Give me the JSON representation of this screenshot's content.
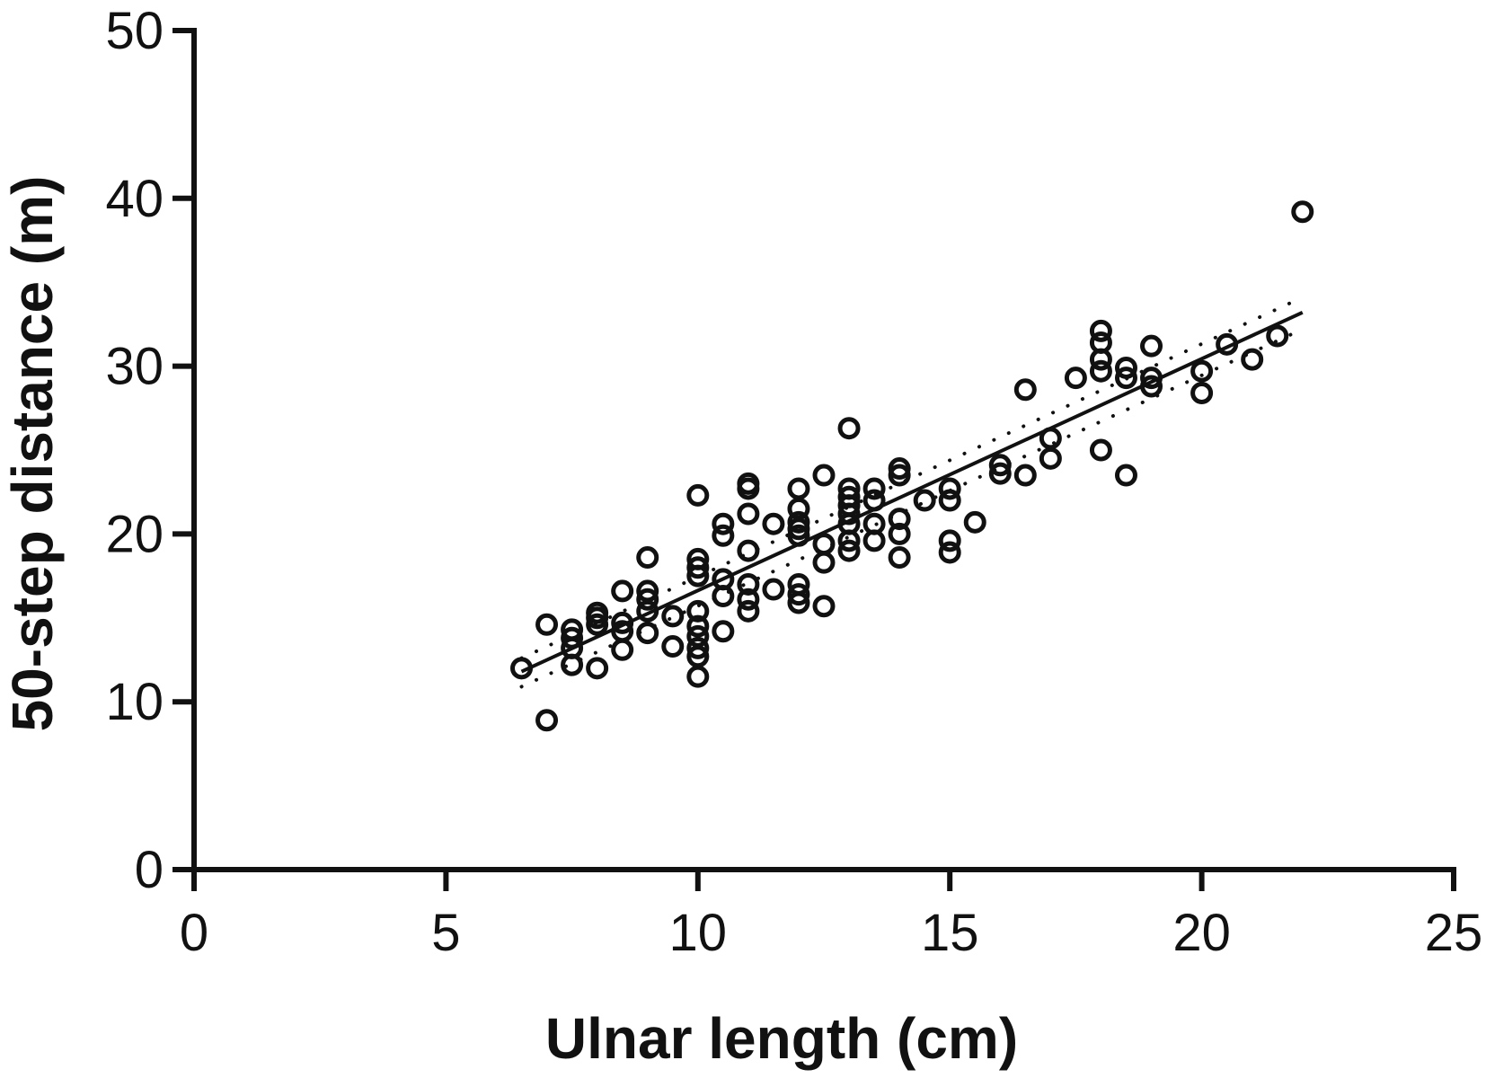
{
  "chart_data": {
    "type": "scatter",
    "title": "",
    "xlabel": "Ulnar length (cm)",
    "ylabel": "50-step distance (m)",
    "xlim": [
      0,
      25
    ],
    "ylim": [
      0,
      50
    ],
    "x_ticks": [
      "0",
      "5",
      "10",
      "15",
      "20",
      "25"
    ],
    "y_ticks": [
      "0",
      "10",
      "20",
      "30",
      "40",
      "50"
    ],
    "grid": false,
    "legend": "none",
    "marker": "open-circle",
    "color": "#111111",
    "series": [
      {
        "points": [
          [
            6.5,
            12.0
          ],
          [
            7.0,
            14.6
          ],
          [
            7.0,
            8.9
          ],
          [
            7.5,
            12.2
          ],
          [
            7.5,
            13.2
          ],
          [
            7.5,
            13.8
          ],
          [
            7.5,
            14.3
          ],
          [
            8.0,
            12.0
          ],
          [
            8.0,
            14.6
          ],
          [
            8.0,
            15.0
          ],
          [
            8.0,
            15.3
          ],
          [
            8.5,
            13.1
          ],
          [
            8.5,
            14.2
          ],
          [
            8.5,
            14.7
          ],
          [
            8.5,
            16.6
          ],
          [
            9.0,
            14.1
          ],
          [
            9.0,
            15.4
          ],
          [
            9.0,
            16.1
          ],
          [
            9.0,
            16.6
          ],
          [
            9.0,
            18.6
          ],
          [
            9.5,
            13.3
          ],
          [
            9.5,
            15.1
          ],
          [
            10.0,
            11.5
          ],
          [
            10.0,
            12.7
          ],
          [
            10.0,
            13.2
          ],
          [
            10.0,
            13.9
          ],
          [
            10.0,
            14.5
          ],
          [
            10.0,
            15.4
          ],
          [
            10.0,
            17.5
          ],
          [
            10.0,
            18.0
          ],
          [
            10.0,
            18.5
          ],
          [
            10.0,
            22.3
          ],
          [
            10.5,
            14.2
          ],
          [
            10.5,
            16.3
          ],
          [
            10.5,
            17.3
          ],
          [
            10.5,
            19.9
          ],
          [
            10.5,
            20.6
          ],
          [
            11.0,
            15.4
          ],
          [
            11.0,
            16.1
          ],
          [
            11.0,
            17.0
          ],
          [
            11.0,
            19.0
          ],
          [
            11.0,
            21.2
          ],
          [
            11.0,
            22.7
          ],
          [
            11.0,
            23.0
          ],
          [
            11.5,
            16.7
          ],
          [
            11.5,
            20.6
          ],
          [
            12.0,
            15.9
          ],
          [
            12.0,
            16.4
          ],
          [
            12.0,
            17.0
          ],
          [
            12.0,
            19.9
          ],
          [
            12.0,
            20.3
          ],
          [
            12.0,
            20.7
          ],
          [
            12.0,
            21.5
          ],
          [
            12.0,
            22.7
          ],
          [
            12.5,
            15.7
          ],
          [
            12.5,
            18.3
          ],
          [
            12.5,
            19.4
          ],
          [
            12.5,
            23.5
          ],
          [
            13.0,
            19.0
          ],
          [
            13.0,
            19.6
          ],
          [
            13.0,
            20.6
          ],
          [
            13.0,
            21.2
          ],
          [
            13.0,
            21.7
          ],
          [
            13.0,
            22.2
          ],
          [
            13.0,
            22.7
          ],
          [
            13.0,
            26.3
          ],
          [
            13.5,
            19.6
          ],
          [
            13.5,
            20.6
          ],
          [
            13.5,
            22.0
          ],
          [
            13.5,
            22.7
          ],
          [
            14.0,
            18.6
          ],
          [
            14.0,
            20.0
          ],
          [
            14.0,
            20.9
          ],
          [
            14.0,
            23.5
          ],
          [
            14.0,
            23.9
          ],
          [
            14.5,
            22.0
          ],
          [
            15.0,
            18.9
          ],
          [
            15.0,
            19.6
          ],
          [
            15.0,
            22.0
          ],
          [
            15.0,
            22.7
          ],
          [
            15.5,
            20.7
          ],
          [
            16.0,
            23.6
          ],
          [
            16.0,
            24.1
          ],
          [
            16.5,
            23.5
          ],
          [
            16.5,
            28.6
          ],
          [
            17.0,
            24.5
          ],
          [
            17.0,
            25.7
          ],
          [
            17.5,
            29.3
          ],
          [
            18.0,
            25.0
          ],
          [
            18.0,
            29.7
          ],
          [
            18.0,
            30.4
          ],
          [
            18.0,
            31.4
          ],
          [
            18.0,
            32.1
          ],
          [
            18.5,
            23.5
          ],
          [
            18.5,
            29.3
          ],
          [
            18.5,
            29.9
          ],
          [
            19.0,
            28.8
          ],
          [
            19.0,
            29.3
          ],
          [
            19.0,
            31.2
          ],
          [
            20.0,
            28.4
          ],
          [
            20.0,
            29.7
          ],
          [
            20.5,
            31.3
          ],
          [
            21.0,
            30.4
          ],
          [
            21.5,
            31.8
          ],
          [
            22.0,
            39.2
          ]
        ]
      }
    ],
    "regression_line": {
      "x": [
        6.5,
        22.0
      ],
      "y": [
        11.8,
        33.2
      ],
      "style": "solid"
    },
    "confidence_band": {
      "style": "dotted",
      "upper": {
        "x": [
          6.5,
          22.0
        ],
        "y": [
          12.6,
          34.1
        ]
      },
      "lower": {
        "x": [
          6.5,
          22.0
        ],
        "y": [
          10.9,
          32.2
        ]
      }
    }
  }
}
